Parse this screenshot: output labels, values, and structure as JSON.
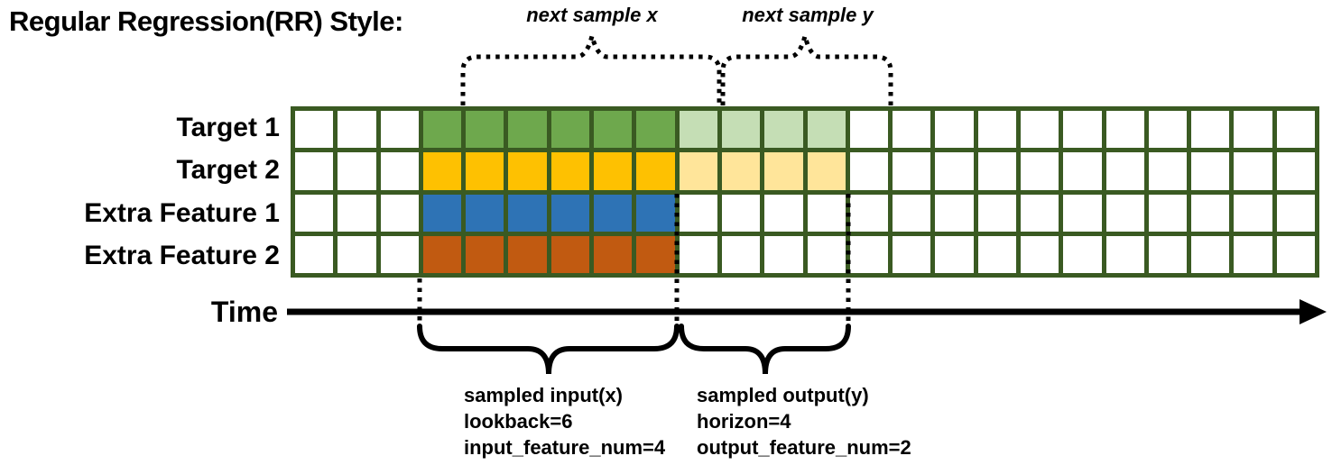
{
  "title": "Regular Regression(RR) Style:",
  "colors": {
    "grid_border": "#3A5A22",
    "target1_input": "#6EA84D",
    "target1_output": "#C5DEB5",
    "target2_input": "#FEC101",
    "target2_output": "#FFE59A",
    "feature1_input": "#2E73B5",
    "feature2_input": "#C15A11",
    "annotation": "#000000",
    "cell_empty": "#FFFFFF"
  },
  "grid": {
    "columns": 24,
    "lookback_start_col": 3,
    "lookback": 6,
    "horizon": 4,
    "rows": [
      {
        "label": "Target 1",
        "type": "target",
        "input_color": "#6EA84D",
        "output_color": "#C5DEB5"
      },
      {
        "label": "Target 2",
        "type": "target",
        "input_color": "#FEC101",
        "output_color": "#FFE59A"
      },
      {
        "label": "Extra Feature 1",
        "type": "feature",
        "input_color": "#2E73B5",
        "output_color": null
      },
      {
        "label": "Extra Feature 2",
        "type": "feature",
        "input_color": "#C15A11",
        "output_color": null
      }
    ]
  },
  "annotations": {
    "next_sample_x": "next sample x",
    "next_sample_y": "next sample y",
    "time_label": "Time",
    "input_lines": [
      "sampled input(x)",
      "lookback=6",
      "input_feature_num=4"
    ],
    "output_lines": [
      "sampled output(y)",
      "horizon=4",
      "output_feature_num=2"
    ]
  }
}
